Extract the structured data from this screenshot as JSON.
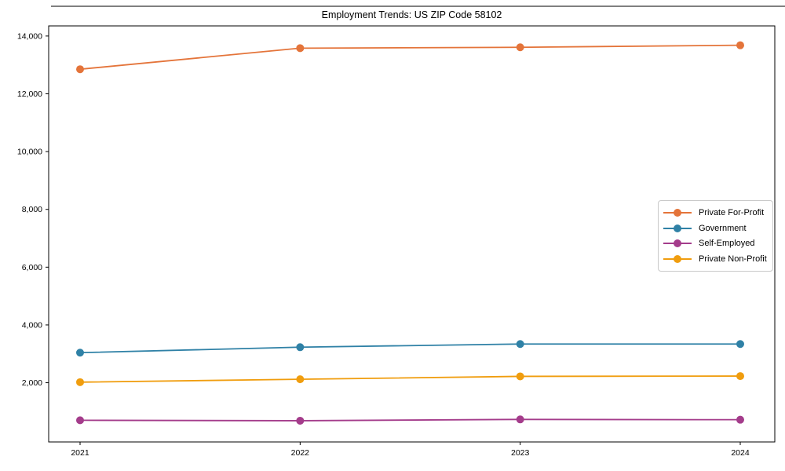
{
  "title": "Employment Trends: US ZIP Code 58102",
  "chart_data": {
    "type": "line",
    "title": "Employment Trends: US ZIP Code 58102",
    "xlabel": "",
    "ylabel": "",
    "x": [
      2021,
      2022,
      2023,
      2024
    ],
    "xtick_labels": [
      "2021",
      "2022",
      "2023",
      "2024"
    ],
    "yticks": [
      2000,
      4000,
      6000,
      8000,
      10000,
      12000,
      14000
    ],
    "ytick_labels": [
      "2,000",
      "4,000",
      "6,000",
      "8,000",
      "10,000",
      "12,000",
      "14,000"
    ],
    "ylim": [
      -50,
      14350
    ],
    "grid": false,
    "marker": "circle",
    "legend_position": "center-right",
    "series": [
      {
        "name": "Private For-Profit",
        "color": "#e4743a",
        "values": [
          12850,
          13580,
          13610,
          13680
        ]
      },
      {
        "name": "Government",
        "color": "#2f81a6",
        "values": [
          3040,
          3230,
          3340,
          3340
        ]
      },
      {
        "name": "Self-Employed",
        "color": "#a43c8b",
        "values": [
          700,
          685,
          730,
          720
        ]
      },
      {
        "name": "Private Non-Profit",
        "color": "#f09d0e",
        "values": [
          2020,
          2120,
          2220,
          2230
        ]
      }
    ]
  }
}
